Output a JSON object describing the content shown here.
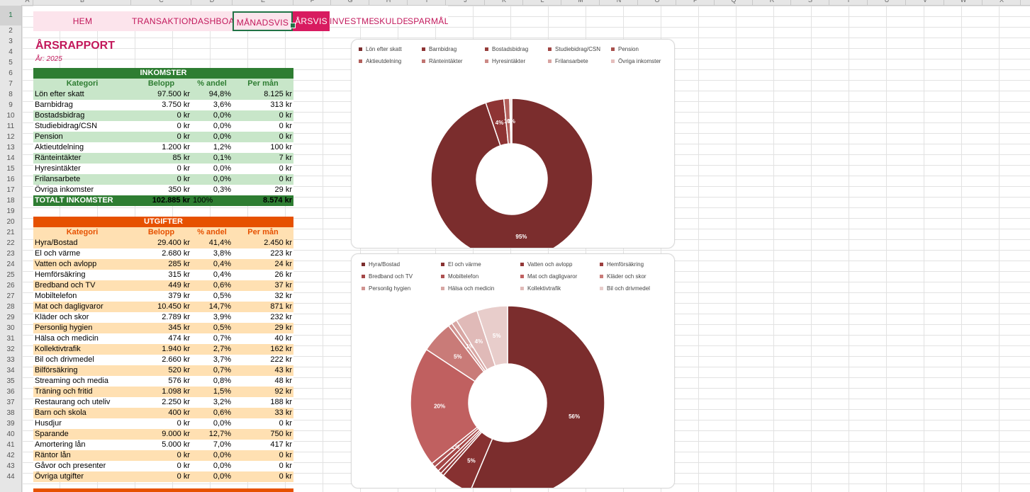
{
  "columns": [
    "A",
    "B",
    "C",
    "D",
    "E",
    "F",
    "G",
    "H",
    "I",
    "J",
    "K",
    "L",
    "M",
    "N",
    "O",
    "P",
    "Q",
    "R",
    "S",
    "T",
    "U",
    "V",
    "W",
    "X"
  ],
  "rows": [
    "1",
    "2",
    "3",
    "4",
    "5",
    "6",
    "7",
    "8",
    "9",
    "10",
    "11",
    "12",
    "13",
    "14",
    "15",
    "16",
    "17",
    "18",
    "19",
    "20",
    "21",
    "22",
    "23",
    "24",
    "25",
    "26",
    "27",
    "28",
    "29",
    "30",
    "31",
    "32",
    "33",
    "34",
    "35",
    "36",
    "37",
    "38",
    "39",
    "40",
    "41",
    "42",
    "43",
    "44"
  ],
  "nav": [
    {
      "label": "HEM"
    },
    {
      "label": "TRANSAKTIONER"
    },
    {
      "label": "DASHBOARD"
    },
    {
      "label": "MÅNADSVIS"
    },
    {
      "label": "ÅRSVIS"
    },
    {
      "label": "INVESTMENT"
    },
    {
      "label": "SKULDER"
    },
    {
      "label": "SPARMÅL"
    }
  ],
  "report": {
    "title": "ÅRSRAPPORT",
    "year": "År: 2025"
  },
  "colors": {
    "income_green": "#2e7d32",
    "income_light": "#c8e6c9",
    "expense_orange": "#e65100",
    "expense_light": "#ffe0b2",
    "accent_pink": "#c2185b",
    "active_tab": "#d81b60"
  },
  "income": {
    "header": "INKOMSTER",
    "columns": [
      "Kategori",
      "Belopp",
      "% andel",
      "Per mån"
    ],
    "rows": [
      [
        "Lön efter skatt",
        "97.500 kr",
        "94,8%",
        "8.125 kr"
      ],
      [
        "Barnbidrag",
        "3.750 kr",
        "3,6%",
        "313 kr"
      ],
      [
        "Bostadsbidrag",
        "0 kr",
        "0,0%",
        "0 kr"
      ],
      [
        "Studiebidrag/CSN",
        "0 kr",
        "0,0%",
        "0 kr"
      ],
      [
        "Pension",
        "0 kr",
        "0,0%",
        "0 kr"
      ],
      [
        "Aktieutdelning",
        "1.200 kr",
        "1,2%",
        "100 kr"
      ],
      [
        "Ränteintäkter",
        "85 kr",
        "0,1%",
        "7 kr"
      ],
      [
        "Hyresintäkter",
        "0 kr",
        "0,0%",
        "0 kr"
      ],
      [
        "Frilansarbete",
        "0 kr",
        "0,0%",
        "0 kr"
      ],
      [
        "Övriga inkomster",
        "350 kr",
        "0,3%",
        "29 kr"
      ]
    ],
    "total": [
      "TOTALT INKOMSTER",
      "102.885 kr",
      "100%",
      "8.574 kr"
    ]
  },
  "expenses": {
    "header": "UTGIFTER",
    "columns": [
      "Kategori",
      "Belopp",
      "% andel",
      "Per mån"
    ],
    "rows": [
      [
        "Hyra/Bostad",
        "29.400 kr",
        "41,4%",
        "2.450 kr"
      ],
      [
        "El och värme",
        "2.680 kr",
        "3,8%",
        "223 kr"
      ],
      [
        "Vatten och avlopp",
        "285 kr",
        "0,4%",
        "24 kr"
      ],
      [
        "Hemförsäkring",
        "315 kr",
        "0,4%",
        "26 kr"
      ],
      [
        "Bredband och TV",
        "449 kr",
        "0,6%",
        "37 kr"
      ],
      [
        "Mobiltelefon",
        "379 kr",
        "0,5%",
        "32 kr"
      ],
      [
        "Mat och dagligvaror",
        "10.450 kr",
        "14,7%",
        "871 kr"
      ],
      [
        "Kläder och skor",
        "2.789 kr",
        "3,9%",
        "232 kr"
      ],
      [
        "Personlig hygien",
        "345 kr",
        "0,5%",
        "29 kr"
      ],
      [
        "Hälsa och medicin",
        "474 kr",
        "0,7%",
        "40 kr"
      ],
      [
        "Kollektivtrafik",
        "1.940 kr",
        "2,7%",
        "162 kr"
      ],
      [
        "Bil och drivmedel",
        "2.660 kr",
        "3,7%",
        "222 kr"
      ],
      [
        "Bilförsäkring",
        "520 kr",
        "0,7%",
        "43 kr"
      ],
      [
        "Streaming och media",
        "576 kr",
        "0,8%",
        "48 kr"
      ],
      [
        "Träning och fritid",
        "1.098 kr",
        "1,5%",
        "92 kr"
      ],
      [
        "Restaurang och uteliv",
        "2.250 kr",
        "3,2%",
        "188 kr"
      ],
      [
        "Barn och skola",
        "400 kr",
        "0,6%",
        "33 kr"
      ],
      [
        "Husdjur",
        "0 kr",
        "0,0%",
        "0 kr"
      ],
      [
        "Sparande",
        "9.000 kr",
        "12,7%",
        "750 kr"
      ],
      [
        "Amortering lån",
        "5.000 kr",
        "7,0%",
        "417 kr"
      ],
      [
        "Räntor lån",
        "0 kr",
        "0,0%",
        "0 kr"
      ],
      [
        "Gåvor och presenter",
        "0 kr",
        "0,0%",
        "0 kr"
      ],
      [
        "Övriga utgifter",
        "0 kr",
        "0,0%",
        "0 kr"
      ]
    ]
  },
  "chart_data": [
    {
      "type": "pie",
      "donut": true,
      "legend_position": "top",
      "labels": [
        "Lön efter skatt",
        "Barnbidrag",
        "Bostadsbidrag",
        "Studiebidrag/CSN",
        "Pension",
        "Aktieutdelning",
        "Ränteintäkter",
        "Hyresintäkter",
        "Frilansarbete",
        "Övriga inkomster"
      ],
      "values": [
        97500,
        3750,
        0,
        0,
        0,
        1200,
        85,
        0,
        0,
        350
      ],
      "colors": [
        "#7b2d2d",
        "#8e3434",
        "#963d3a",
        "#a04644",
        "#a8504c",
        "#b25f5b",
        "#c07471",
        "#cc8a86",
        "#d8a3a0",
        "#e4bebc"
      ],
      "data_labels": [
        "95%",
        "4%",
        "",
        "",
        "",
        "1%",
        "",
        "",
        "",
        "0%"
      ]
    },
    {
      "type": "pie",
      "donut": true,
      "legend_position": "top",
      "labels": [
        "Hyra/Bostad",
        "El och värme",
        "Vatten och avlopp",
        "Hemförsäkring",
        "Bredband och TV",
        "Mobiltelefon",
        "Mat och dagligvaror",
        "Kläder och skor",
        "Personlig hygien",
        "Hälsa och medicin",
        "Kollektivtrafik",
        "Bil och drivmedel"
      ],
      "values": [
        29400,
        2680,
        285,
        315,
        449,
        379,
        10450,
        2789,
        345,
        474,
        1940,
        2660
      ],
      "colors": [
        "#7b2d2d",
        "#873131",
        "#923737",
        "#9c3e3e",
        "#a54747",
        "#ae5252",
        "#c06060",
        "#c97b78",
        "#d19390",
        "#d8a6a3",
        "#e0bab8",
        "#e8cdcb"
      ],
      "data_labels": [
        "56%",
        "5%",
        "",
        "",
        "",
        "1%",
        "20%",
        "5%",
        "",
        "1%",
        "4%",
        "5%"
      ]
    }
  ]
}
